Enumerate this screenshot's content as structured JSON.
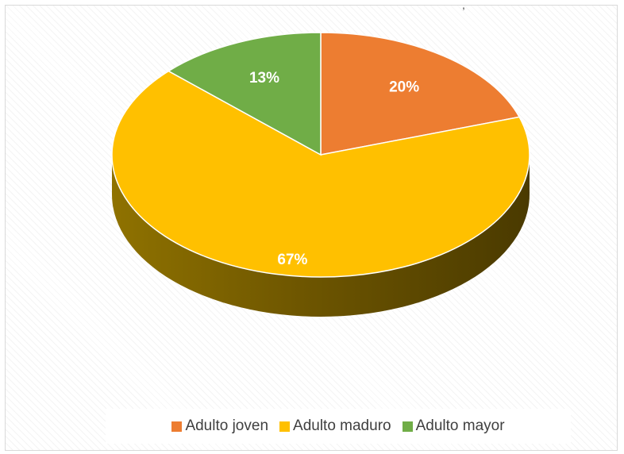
{
  "top_mark": ",",
  "chart_data": {
    "type": "pie",
    "title": "",
    "legend_position": "bottom",
    "three_d": true,
    "slices": [
      {
        "name": "Adulto joven",
        "value": 20,
        "label": "20%",
        "color": "#ED7D31",
        "side_color": "#8A4A1D"
      },
      {
        "name": "Adulto maduro",
        "value": 67,
        "label": "67%",
        "color": "#FFC000",
        "side_color": "#6B5300"
      },
      {
        "name": "Adulto mayor",
        "value": 13,
        "label": "13%",
        "color": "#70AD47",
        "side_color": "#3F6128"
      }
    ]
  }
}
